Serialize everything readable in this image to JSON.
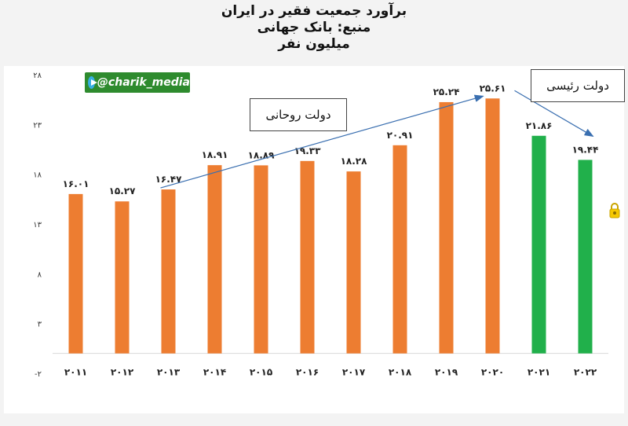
{
  "title": {
    "line1": "برآورد جمعیت فقیر در ایران",
    "line2": "منبع: بانک جهانی",
    "line3": "میلیون نفر"
  },
  "watermark": "@charik_media",
  "annotations": {
    "rouhani": "دولت روحانی",
    "raisi": "دولت رئیسی"
  },
  "chart_data": {
    "type": "bar",
    "categories": [
      "2011",
      "2012",
      "2013",
      "2014",
      "2015",
      "2016",
      "2017",
      "2018",
      "2019",
      "2020",
      "2021",
      "2022"
    ],
    "values": [
      16.01,
      15.27,
      16.47,
      18.91,
      18.89,
      19.33,
      18.28,
      20.91,
      25.24,
      25.61,
      21.86,
      19.44
    ],
    "value_labels": [
      "۱۶.۰۱",
      "۱۵.۲۷",
      "۱۶.۴۷",
      "۱۸.۹۱",
      "۱۸.۸۹",
      "۱۹.۳۳",
      "۱۸.۲۸",
      "۲۰.۹۱",
      "۲۵.۲۴",
      "۲۵.۶۱",
      "۲۱.۸۶",
      "۱۹.۴۴"
    ],
    "x_tick_labels": [
      "۲۰۱۱",
      "۲۰۱۲",
      "۲۰۱۳",
      "۲۰۱۴",
      "۲۰۱۵",
      "۲۰۱۶",
      "۲۰۱۷",
      "۲۰۱۸",
      "۲۰۱۹",
      "۲۰۲۰",
      "۲۰۲۱",
      "۲۰۲۲"
    ],
    "y_ticks": [
      -2,
      3,
      8,
      13,
      18,
      23,
      28
    ],
    "y_tick_labels": [
      "-۲",
      "۳",
      "۸",
      "۱۳",
      "۱۸",
      "۲۳",
      "۲۸"
    ],
    "ylim": [
      -2,
      28
    ],
    "bar_base": 0,
    "colors": {
      "rouhani": "#ed7d31",
      "raisi": "#21b04b"
    },
    "bar_colors": [
      "rouhani",
      "rouhani",
      "rouhani",
      "rouhani",
      "rouhani",
      "rouhani",
      "rouhani",
      "rouhani",
      "rouhani",
      "rouhani",
      "raisi",
      "raisi"
    ],
    "grid": false,
    "legend": "none"
  }
}
